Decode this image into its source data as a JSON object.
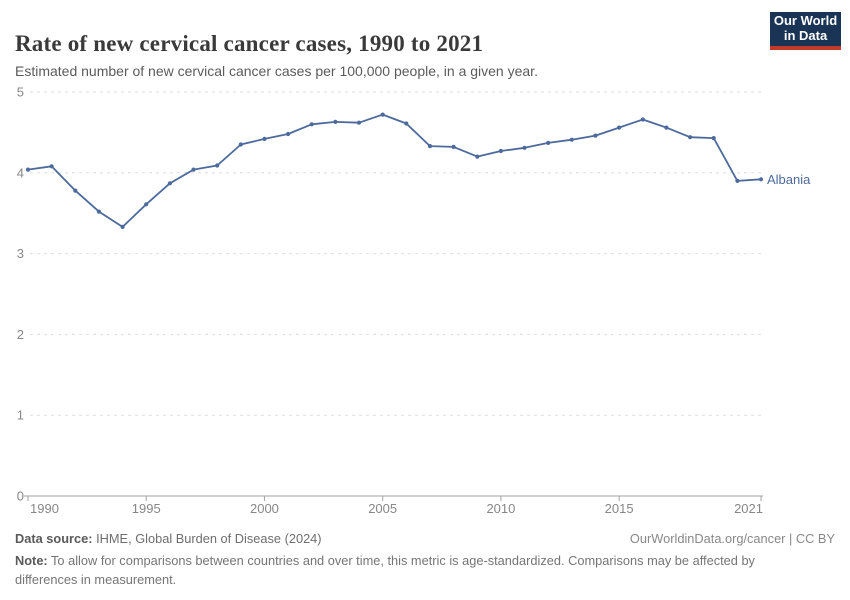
{
  "header": {
    "title": "Rate of new cervical cancer cases, 1990 to 2021",
    "subtitle": "Estimated number of new cervical cancer cases per 100,000 people, in a given year.",
    "logo": {
      "line1": "Our World",
      "line2": "in Data",
      "bg_color": "#1a3455",
      "accent_color": "#c0392b"
    }
  },
  "chart_data": {
    "type": "line",
    "title": "Rate of new cervical cancer cases, 1990 to 2021",
    "x": [
      1990,
      1991,
      1992,
      1993,
      1994,
      1995,
      1996,
      1997,
      1998,
      1999,
      2000,
      2001,
      2002,
      2003,
      2004,
      2005,
      2006,
      2007,
      2008,
      2009,
      2010,
      2011,
      2012,
      2013,
      2014,
      2015,
      2016,
      2017,
      2018,
      2019,
      2020,
      2021
    ],
    "series": [
      {
        "name": "Albania",
        "color": "#4c6a9c",
        "values": [
          4.04,
          4.08,
          3.78,
          3.52,
          3.33,
          3.61,
          3.87,
          4.04,
          4.09,
          4.35,
          4.42,
          4.48,
          4.6,
          4.63,
          4.62,
          4.72,
          4.61,
          4.33,
          4.32,
          4.2,
          4.27,
          4.31,
          4.37,
          4.41,
          4.46,
          4.56,
          4.66,
          4.56,
          4.44,
          4.43,
          3.9,
          3.92
        ]
      }
    ],
    "ylim": [
      0,
      5
    ],
    "yticks": [
      0,
      1,
      2,
      3,
      4,
      5
    ],
    "xticks": [
      1990,
      1995,
      2000,
      2005,
      2010,
      2015,
      2021
    ],
    "grid": "horizontal-dashed",
    "grid_color": "#dedede",
    "axis_color": "#a3a3a3",
    "tick_label_color": "#878787",
    "legend_position": "end-of-line-label"
  },
  "footer": {
    "source_label": "Data source:",
    "source_value": " IHME, Global Burden of Disease (2024)",
    "attribution": "OurWorldinData.org/cancer | CC BY",
    "note_label": "Note:",
    "note_value": " To allow for comparisons between countries and over time, this metric is age-standardized. Comparisons may be affected by differences in measurement."
  }
}
